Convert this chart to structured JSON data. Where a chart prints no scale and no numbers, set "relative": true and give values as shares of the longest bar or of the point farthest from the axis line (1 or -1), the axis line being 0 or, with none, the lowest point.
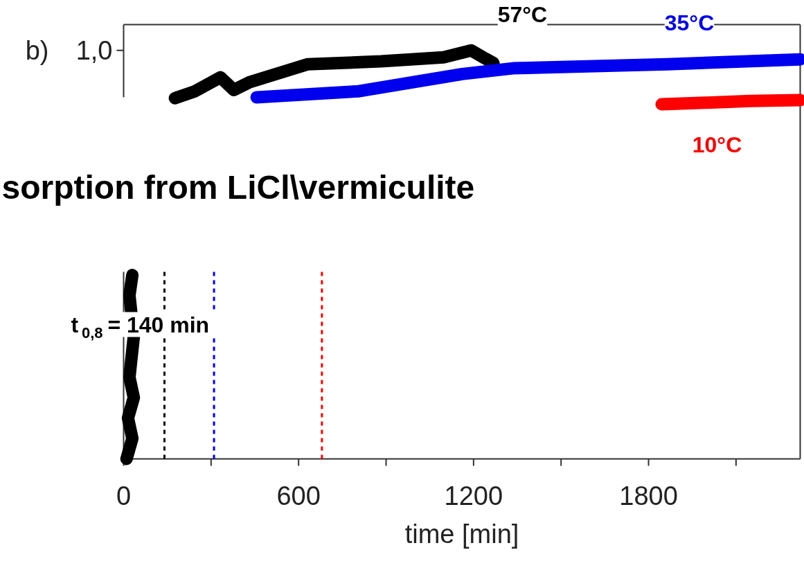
{
  "chart_data": {
    "type": "line",
    "relative": true,
    "title": "sorption from LiCl\\vermiculite",
    "xlabel": "time [min]",
    "annotations": [
      "b)",
      "1,0"
    ],
    "xlim": [
      0,
      2320
    ],
    "xticks": [
      0,
      {
        "value": 300,
        "label": null
      },
      600,
      {
        "value": 900,
        "label": null
      },
      1200,
      {
        "value": 1500,
        "label": null
      },
      1800,
      {
        "value": 2100,
        "label": null
      }
    ],
    "tick_labels": "x",
    "legend": false,
    "line_style": "solid",
    "series": [
      {
        "name": "57°C",
        "color": "#000000",
        "x": [
          10,
          30,
          15,
          35,
          20,
          35,
          20,
          30,
          60,
          176,
          245,
          332,
          378,
          432,
          632,
          883,
          1097,
          1192,
          1240,
          1268
        ],
        "values": [
          0.0,
          0.05,
          0.1,
          0.15,
          0.2,
          0.3,
          0.4,
          0.45,
          null,
          0.883,
          0.9,
          0.934,
          0.903,
          0.922,
          0.966,
          0.973,
          0.983,
          1.0,
          0.98,
          0.969
        ]
      },
      {
        "name": "35°C",
        "color": "#0000ee",
        "x": [
          456,
          807,
          1161,
          1335,
          1864,
          2320
        ],
        "values": [
          0.885,
          0.9,
          0.942,
          0.956,
          0.966,
          0.978
        ]
      },
      {
        "name": "10°C",
        "color": "#ff0000",
        "x": [
          1845,
          2000,
          2150,
          2320
        ],
        "values": [
          0.868,
          0.872,
          0.876,
          0.878
        ]
      }
    ],
    "ref_lines": [
      {
        "axis": "x",
        "value": 140,
        "label": "t$_{0,8}$ = 140 min",
        "color": "#000000",
        "line_style": "dashed"
      },
      {
        "axis": "x",
        "value": 310,
        "color": "#0000ee",
        "line_style": "dashed"
      },
      {
        "axis": "x",
        "value": 680,
        "color": "#ff0000",
        "line_style": "dashed"
      }
    ]
  }
}
